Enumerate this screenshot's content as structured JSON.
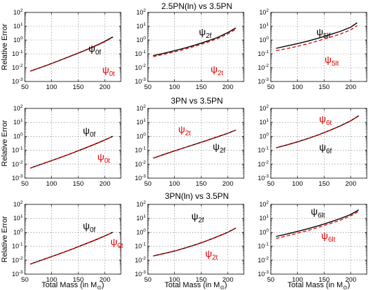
{
  "figure": {
    "ylabel": "Relative Error",
    "xlabel_text": "Total Mass (in M",
    "xlabel_sub": "⊙",
    "xlabel_close": ")",
    "row_titles": [
      "2.5PN(ln) vs 3.5PN",
      "3PN vs 3.5PN",
      "3PN(ln) vs 3.5PN"
    ]
  },
  "chart_data": [
    {
      "type": "line",
      "row": 0,
      "col": 0,
      "xlim": [
        50,
        230
      ],
      "ylim_log10": [
        -3,
        2
      ],
      "x_ticks": [
        50,
        100,
        150,
        200
      ],
      "y_tick_labels": [
        "10^-3",
        "10^-2",
        "10^-1",
        "10^0",
        "10^1",
        "10^2"
      ],
      "grid": true,
      "x": [
        60,
        80,
        100,
        120,
        140,
        160,
        180,
        200,
        215
      ],
      "series": [
        {
          "label": "ψ0f",
          "color": "#000000",
          "dash": "solid",
          "values": [
            0.0056,
            0.0105,
            0.02,
            0.04,
            0.08,
            0.16,
            0.35,
            0.8,
            1.7
          ]
        },
        {
          "label": "ψ0t",
          "color": "#e00000",
          "dash": "dashed",
          "values": [
            0.0055,
            0.0102,
            0.0195,
            0.039,
            0.078,
            0.155,
            0.33,
            0.75,
            1.55
          ]
        }
      ]
    },
    {
      "type": "line",
      "row": 0,
      "col": 1,
      "xlim": [
        50,
        230
      ],
      "ylim_log10": [
        -3,
        2
      ],
      "x_ticks": [
        50,
        100,
        150,
        200
      ],
      "y_tick_labels": [
        "10^-3",
        "10^-2",
        "10^-1",
        "10^0",
        "10^1",
        "10^2"
      ],
      "grid": true,
      "x": [
        60,
        80,
        100,
        120,
        140,
        160,
        180,
        200,
        215
      ],
      "series": [
        {
          "label": "ψ2f",
          "color": "#000000",
          "dash": "solid",
          "values": [
            0.075,
            0.11,
            0.17,
            0.27,
            0.45,
            0.8,
            1.5,
            3.5,
            7.5
          ]
        },
        {
          "label": "ψ2t",
          "color": "#e00000",
          "dash": "dashed",
          "values": [
            0.063,
            0.092,
            0.14,
            0.22,
            0.37,
            0.65,
            1.25,
            2.8,
            6.0
          ]
        }
      ]
    },
    {
      "type": "line",
      "row": 0,
      "col": 2,
      "xlim": [
        50,
        230
      ],
      "ylim_log10": [
        -3,
        2
      ],
      "x_ticks": [
        50,
        100,
        150,
        200
      ],
      "y_tick_labels": [
        "10^-3",
        "10^-2",
        "10^-1",
        "10^0",
        "10^1",
        "10^2"
      ],
      "grid": true,
      "x": [
        60,
        80,
        100,
        120,
        140,
        160,
        180,
        200,
        212
      ],
      "series": [
        {
          "label": "ψ5lf",
          "color": "#000000",
          "dash": "solid",
          "values": [
            0.25,
            0.37,
            0.55,
            0.85,
            1.4,
            2.4,
            4.2,
            8.5,
            18
          ]
        },
        {
          "label": "ψ5lt",
          "color": "#e00000",
          "dash": "dashed",
          "values": [
            0.17,
            0.24,
            0.35,
            0.55,
            0.9,
            1.55,
            2.7,
            5.5,
            11
          ]
        }
      ]
    },
    {
      "type": "line",
      "row": 1,
      "col": 0,
      "xlim": [
        50,
        230
      ],
      "ylim_log10": [
        -3,
        2
      ],
      "x_ticks": [
        50,
        100,
        150,
        200
      ],
      "y_tick_labels": [
        "10^-3",
        "10^-2",
        "10^-1",
        "10^0",
        "10^1",
        "10^2"
      ],
      "grid": true,
      "x": [
        60,
        80,
        100,
        120,
        140,
        160,
        180,
        200,
        215
      ],
      "series": [
        {
          "label": "ψ0f",
          "color": "#000000",
          "dash": "solid",
          "values": [
            0.0052,
            0.0098,
            0.018,
            0.034,
            0.065,
            0.13,
            0.26,
            0.55,
            1.0
          ]
        },
        {
          "label": "ψ0t",
          "color": "#e00000",
          "dash": "dashed",
          "values": [
            0.0051,
            0.0096,
            0.0178,
            0.0335,
            0.064,
            0.128,
            0.255,
            0.54,
            0.98
          ]
        }
      ]
    },
    {
      "type": "line",
      "row": 1,
      "col": 1,
      "xlim": [
        50,
        230
      ],
      "ylim_log10": [
        -3,
        2
      ],
      "x_ticks": [
        50,
        100,
        150,
        200
      ],
      "y_tick_labels": [
        "10^-3",
        "10^-2",
        "10^-1",
        "10^0",
        "10^1",
        "10^2"
      ],
      "grid": true,
      "x": [
        60,
        80,
        100,
        120,
        140,
        160,
        180,
        200,
        215
      ],
      "series": [
        {
          "label": "ψ2f",
          "color": "#000000",
          "dash": "solid",
          "values": [
            0.027,
            0.05,
            0.09,
            0.16,
            0.28,
            0.5,
            0.9,
            1.65,
            2.8
          ]
        },
        {
          "label": "ψ2t",
          "color": "#e00000",
          "dash": "dashed",
          "values": [
            0.0265,
            0.049,
            0.088,
            0.157,
            0.275,
            0.49,
            0.88,
            1.62,
            2.75
          ]
        }
      ]
    },
    {
      "type": "line",
      "row": 1,
      "col": 2,
      "xlim": [
        50,
        230
      ],
      "ylim_log10": [
        -3,
        2
      ],
      "x_ticks": [
        50,
        100,
        150,
        200
      ],
      "y_tick_labels": [
        "10^-3",
        "10^-2",
        "10^-1",
        "10^0",
        "10^1",
        "10^2"
      ],
      "grid": true,
      "x": [
        60,
        80,
        100,
        120,
        140,
        160,
        180,
        200,
        215
      ],
      "series": [
        {
          "label": "ψ6f",
          "color": "#000000",
          "dash": "solid",
          "values": [
            0.15,
            0.24,
            0.4,
            0.7,
            1.3,
            2.6,
            5.5,
            13,
            30
          ]
        },
        {
          "label": "ψ6t",
          "color": "#e00000",
          "dash": "dashed",
          "values": [
            0.148,
            0.235,
            0.39,
            0.69,
            1.28,
            2.55,
            5.4,
            12.8,
            29
          ]
        }
      ]
    },
    {
      "type": "line",
      "row": 2,
      "col": 0,
      "xlim": [
        50,
        230
      ],
      "ylim_log10": [
        -3,
        2
      ],
      "x_ticks": [
        50,
        100,
        150,
        200
      ],
      "y_tick_labels": [
        "10^-3",
        "10^-2",
        "10^-1",
        "10^0",
        "10^1",
        "10^2"
      ],
      "grid": true,
      "x": [
        60,
        80,
        100,
        120,
        140,
        160,
        180,
        200,
        215
      ],
      "series": [
        {
          "label": "ψ0f",
          "color": "#000000",
          "dash": "solid",
          "values": [
            0.0052,
            0.0098,
            0.018,
            0.034,
            0.065,
            0.13,
            0.26,
            0.55,
            1.0
          ]
        },
        {
          "label": "ψ0t",
          "color": "#e00000",
          "dash": "dashed",
          "values": [
            0.0051,
            0.0096,
            0.0178,
            0.0335,
            0.064,
            0.128,
            0.255,
            0.54,
            0.98
          ]
        }
      ]
    },
    {
      "type": "line",
      "row": 2,
      "col": 1,
      "xlim": [
        50,
        230
      ],
      "ylim_log10": [
        -3,
        2
      ],
      "x_ticks": [
        50,
        100,
        150,
        200
      ],
      "y_tick_labels": [
        "10^-3",
        "10^-2",
        "10^-1",
        "10^0",
        "10^1",
        "10^2"
      ],
      "grid": true,
      "x": [
        60,
        80,
        100,
        120,
        140,
        160,
        180,
        200,
        215
      ],
      "series": [
        {
          "label": "ψ2f",
          "color": "#000000",
          "dash": "solid",
          "values": [
            0.02,
            0.03,
            0.045,
            0.075,
            0.13,
            0.24,
            0.48,
            1.0,
            2.0
          ]
        },
        {
          "label": "ψ2t",
          "color": "#e00000",
          "dash": "dashed",
          "values": [
            0.0198,
            0.0297,
            0.0445,
            0.074,
            0.128,
            0.237,
            0.475,
            0.99,
            1.97
          ]
        }
      ]
    },
    {
      "type": "line",
      "row": 2,
      "col": 2,
      "xlim": [
        50,
        230
      ],
      "ylim_log10": [
        -3,
        2
      ],
      "x_ticks": [
        50,
        100,
        150,
        200
      ],
      "y_tick_labels": [
        "10^-3",
        "10^-2",
        "10^-1",
        "10^0",
        "10^1",
        "10^2"
      ],
      "grid": true,
      "x": [
        60,
        80,
        100,
        120,
        140,
        160,
        180,
        200,
        215
      ],
      "series": [
        {
          "label": "ψ6lt",
          "color": "#000000",
          "dash": "solid",
          "values": [
            0.5,
            0.75,
            1.15,
            1.8,
            3.0,
            5.2,
            9.5,
            19,
            40
          ]
        },
        {
          "label": "ψ6lt",
          "color": "#e00000",
          "dash": "dashed",
          "values": [
            0.36,
            0.55,
            0.85,
            1.35,
            2.3,
            4.0,
            7.3,
            15,
            32
          ]
        }
      ]
    }
  ],
  "curve_labels": [
    [
      {
        "sym": "ψ",
        "sub": "0f",
        "color": "#000000"
      },
      {
        "sym": "ψ",
        "sub": "0t",
        "color": "#e00000"
      }
    ],
    [
      {
        "sym": "ψ",
        "sub": "2f",
        "color": "#000000"
      },
      {
        "sym": "ψ",
        "sub": "2t",
        "color": "#e00000"
      }
    ],
    [
      {
        "sym": "ψ",
        "sub": "5lf",
        "color": "#000000"
      },
      {
        "sym": "ψ",
        "sub": "5lt",
        "color": "#e00000"
      }
    ],
    [
      {
        "sym": "ψ",
        "sub": "0f",
        "color": "#000000"
      },
      {
        "sym": "ψ",
        "sub": "0t",
        "color": "#e00000"
      }
    ],
    [
      {
        "sym": "ψ",
        "sub": "2t",
        "color": "#e00000"
      },
      {
        "sym": "ψ",
        "sub": "2f",
        "color": "#000000"
      }
    ],
    [
      {
        "sym": "ψ",
        "sub": "6t",
        "color": "#e00000"
      },
      {
        "sym": "ψ",
        "sub": "6f",
        "color": "#000000"
      }
    ],
    [
      {
        "sym": "ψ",
        "sub": "0f",
        "color": "#000000"
      },
      {
        "sym": "ψ",
        "sub": "0t",
        "color": "#e00000"
      }
    ],
    [
      {
        "sym": "ψ",
        "sub": "2f",
        "color": "#000000"
      },
      {
        "sym": "ψ",
        "sub": "2t",
        "color": "#e00000"
      }
    ],
    [
      {
        "sym": "ψ",
        "sub": "6lt",
        "color": "#000000"
      },
      {
        "sym": "ψ",
        "sub": "6lt",
        "color": "#e00000"
      }
    ]
  ]
}
